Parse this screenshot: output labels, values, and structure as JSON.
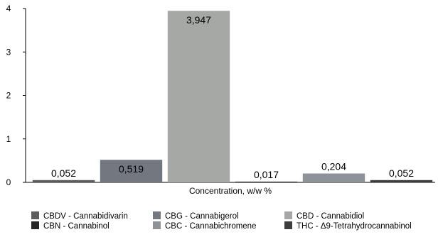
{
  "chart_data": {
    "type": "bar",
    "title": "",
    "xlabel": "Concentration, w/w %",
    "ylabel": "",
    "ylim": [
      0,
      4
    ],
    "yticks": [
      "0",
      "1",
      "2",
      "3",
      "4"
    ],
    "grid": false,
    "legend_placement": "bottom",
    "series": [
      {
        "name": "CBDV - Cannabidivarin",
        "value": 0.052,
        "label": "0,052",
        "color": "#5c5c5c"
      },
      {
        "name": "CBG - Cannabigerol",
        "value": 0.519,
        "label": "0,519",
        "color": "#737880"
      },
      {
        "name": "CBD - Cannabidiol",
        "value": 3.947,
        "label": "3,947",
        "color": "#a6a8a6"
      },
      {
        "name": "CBN - Cannabinol",
        "value": 0.017,
        "label": "0,017",
        "color": "#262626"
      },
      {
        "name": "CBC - Cannabichromene",
        "value": 0.204,
        "label": "0,204",
        "color": "#8e939a"
      },
      {
        "name": "THC - Δ9-Tetrahydrocannabinol",
        "value": 0.052,
        "label": "0,052",
        "color": "#3d3d3d"
      }
    ]
  }
}
